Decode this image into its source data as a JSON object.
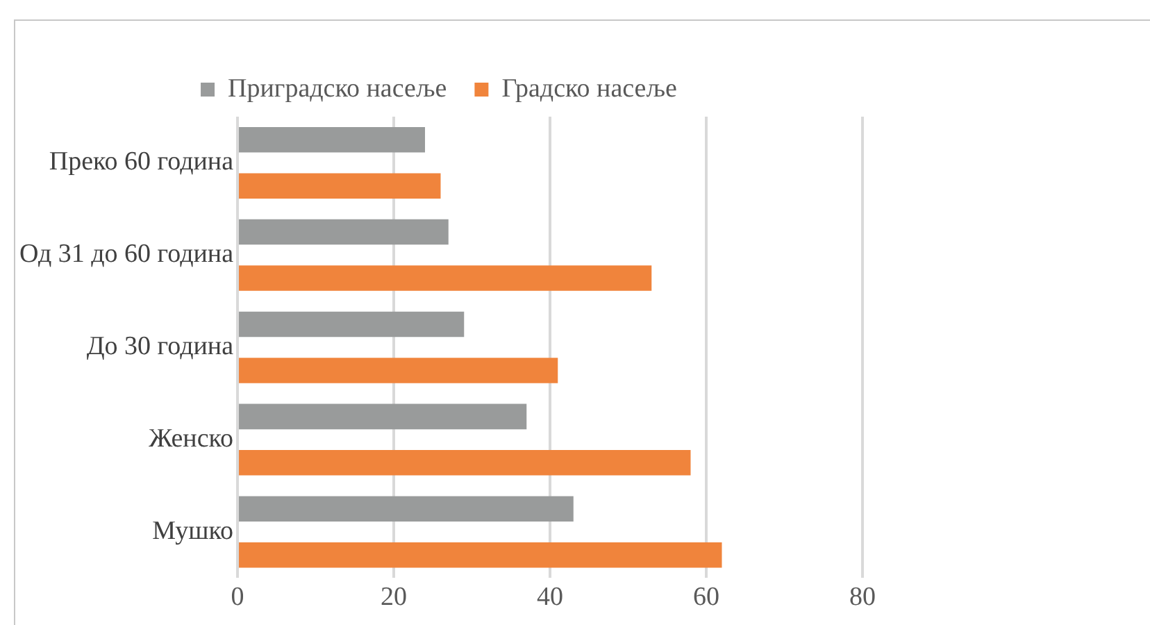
{
  "chart_data": {
    "type": "bar",
    "orientation": "horizontal",
    "categories": [
      "Преко 60 година",
      "Од 31 до 60 година",
      "До 30 година",
      "Женско",
      "Мушко"
    ],
    "series": [
      {
        "name": "Приградско насеље",
        "color": "#999b9b",
        "values": [
          24,
          27,
          29,
          37,
          43
        ]
      },
      {
        "name": "Градско насеље",
        "color": "#f0843c",
        "values": [
          26,
          53,
          41,
          58,
          62
        ]
      }
    ],
    "xlim": [
      0,
      80
    ],
    "xticks": [
      0,
      20,
      40,
      60,
      80
    ],
    "grid": "x",
    "legend": "top"
  }
}
